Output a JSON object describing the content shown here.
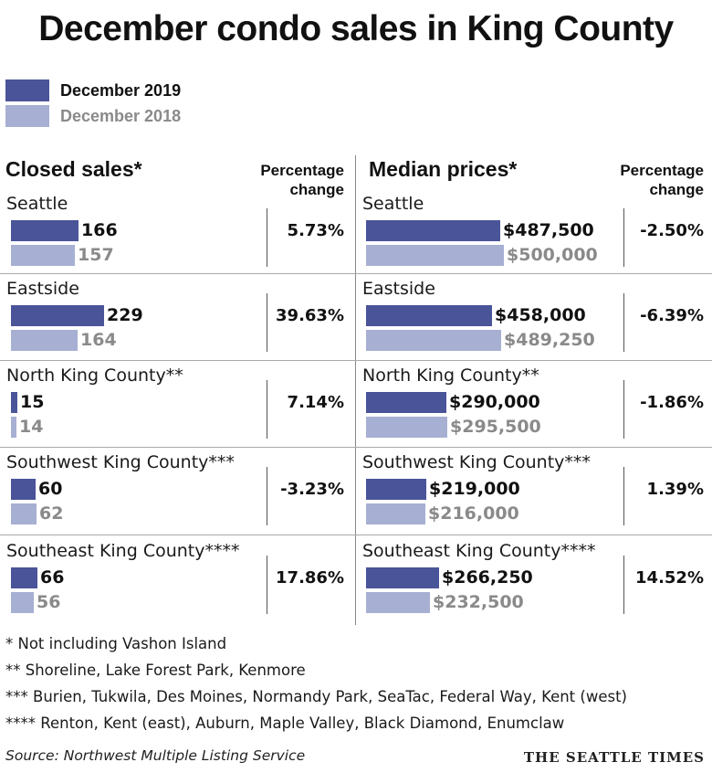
{
  "title": "December condo sales in King County",
  "legend": [
    {
      "label": "December 2019",
      "color": "#4a5499"
    },
    {
      "label": "December 2018",
      "color": "#a7afd2"
    }
  ],
  "closed_header": "Closed sales*",
  "median_header": "Median prices*",
  "pct_header_line1": "Percentage",
  "pct_header_line2": "change",
  "notes": [
    "* Not including Vashon Island",
    "** Shoreline, Lake Forest Park, Kenmore",
    "*** Burien, Tukwila, Des Moines, Normandy Park, SeaTac, Federal Way, Kent (west)",
    "**** Renton, Kent (east), Auburn, Maple Valley, Black Diamond, Enumclaw"
  ],
  "source": "Source: Northwest Multiple Listing Service",
  "brand": "THE SEATTLE TIMES",
  "chart_data": [
    {
      "type": "bar",
      "title": "Closed sales*",
      "categories": [
        "Seattle",
        "Eastside",
        "North King County**",
        "Southwest King County***",
        "Southeast King County****"
      ],
      "series": [
        {
          "name": "December 2019",
          "values": [
            166,
            229,
            15,
            60,
            66
          ],
          "labels": [
            "166",
            "229",
            "15",
            "60",
            "66"
          ]
        },
        {
          "name": "December 2018",
          "values": [
            157,
            164,
            14,
            62,
            56
          ],
          "labels": [
            "157",
            "164",
            "14",
            "62",
            "56"
          ]
        }
      ],
      "percent_change_header": "Percentage change",
      "percent_change": [
        "5.73%",
        "39.63%",
        "7.14%",
        "-3.23%",
        "17.86%"
      ],
      "max": 229
    },
    {
      "type": "bar",
      "title": "Median prices*",
      "categories": [
        "Seattle",
        "Eastside",
        "North King County**",
        "Southwest King County***",
        "Southeast King County****"
      ],
      "series": [
        {
          "name": "December 2019",
          "values": [
            487500,
            458000,
            290000,
            219000,
            266250
          ],
          "labels": [
            "$487,500",
            "$458,000",
            "$290,000",
            "$219,000",
            "$266,250"
          ]
        },
        {
          "name": "December 2018",
          "values": [
            500000,
            489250,
            295500,
            216000,
            232500
          ],
          "labels": [
            "$500,000",
            "$489,250",
            "$295,500",
            "$216,000",
            "$232,500"
          ]
        }
      ],
      "percent_change_header": "Percentage change",
      "percent_change": [
        "-2.50%",
        "-6.39%",
        "-1.86%",
        "1.39%",
        "14.52%"
      ],
      "max": 500000
    }
  ]
}
